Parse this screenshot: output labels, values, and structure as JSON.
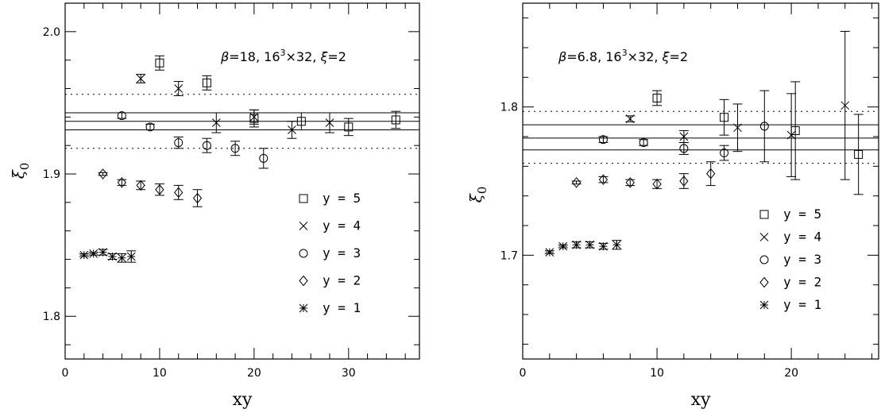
{
  "chart_data": [
    {
      "type": "scatter",
      "title": "",
      "annotation": {
        "beta": "β=18,",
        "lattice_base": "16",
        "lattice_exp": "3",
        "lattice_rest": "×32,",
        "xi_sym": "ξ",
        "xi_val": "=2"
      },
      "xlabel": "xy",
      "ylabel_main": "ξ",
      "ylabel_sub": "0",
      "xlim": [
        0,
        37.5
      ],
      "ylim": [
        1.77,
        2.02
      ],
      "xticks": [
        0,
        10,
        20,
        30
      ],
      "yticks": [
        1.8,
        1.9,
        2.0
      ],
      "xtick_labels": [
        "0",
        "10",
        "20",
        "30"
      ],
      "ytick_labels": [
        "1.8",
        "1.9",
        "2.0"
      ],
      "hlines": [
        1.931,
        1.937,
        1.943
      ],
      "dotted_hlines": [
        1.918,
        1.956
      ],
      "legend_position": "bottom-right",
      "series": [
        {
          "name": "y = 5",
          "marker": "square",
          "x": [
            10,
            15,
            20,
            25,
            30,
            35
          ],
          "y": [
            1.978,
            1.964,
            1.939,
            1.937,
            1.933,
            1.938
          ],
          "err": [
            0.005,
            0.005,
            0.006,
            0.006,
            0.006,
            0.006
          ]
        },
        {
          "name": "y = 4",
          "marker": "cross",
          "x": [
            8,
            12,
            16,
            20,
            24,
            28
          ],
          "y": [
            1.967,
            1.96,
            1.936,
            1.94,
            1.931,
            1.936
          ],
          "err": [
            0.003,
            0.005,
            0.007,
            0.005,
            0.006,
            0.007
          ]
        },
        {
          "name": "y = 3",
          "marker": "circle",
          "x": [
            6,
            9,
            12,
            15,
            18,
            21
          ],
          "y": [
            1.941,
            1.933,
            1.922,
            1.92,
            1.918,
            1.911
          ],
          "err": [
            0.002,
            0.002,
            0.004,
            0.005,
            0.005,
            0.007
          ]
        },
        {
          "name": "y = 2",
          "marker": "diamond",
          "x": [
            4,
            6,
            8,
            10,
            12,
            14
          ],
          "y": [
            1.9,
            1.894,
            1.892,
            1.889,
            1.887,
            1.883
          ],
          "err": [
            0.001,
            0.002,
            0.003,
            0.004,
            0.005,
            0.006
          ]
        },
        {
          "name": "y = 1",
          "marker": "asterisk",
          "x": [
            2,
            3,
            4,
            5,
            6,
            7
          ],
          "y": [
            1.843,
            1.844,
            1.845,
            1.842,
            1.841,
            1.842
          ],
          "err": [
            0.001,
            0.001,
            0.002,
            0.002,
            0.003,
            0.004
          ]
        }
      ]
    },
    {
      "type": "scatter",
      "title": "",
      "annotation": {
        "beta": "β=6.8,",
        "lattice_base": "16",
        "lattice_exp": "3",
        "lattice_rest": "×32,",
        "xi_sym": "ξ",
        "xi_val": "=2"
      },
      "xlabel": "xy",
      "ylabel_main": "ξ",
      "ylabel_sub": "0",
      "xlim": [
        0,
        26.5
      ],
      "ylim": [
        1.63,
        1.87
      ],
      "xticks": [
        0,
        10,
        20
      ],
      "yticks": [
        1.7,
        1.8
      ],
      "xtick_labels": [
        "0",
        "10",
        "20"
      ],
      "ytick_labels": [
        "1.7",
        "1.8"
      ],
      "hlines": [
        1.771,
        1.779,
        1.788
      ],
      "dotted_hlines": [
        1.762,
        1.797
      ],
      "legend_position": "bottom-right",
      "series": [
        {
          "name": "y = 5",
          "marker": "square",
          "x": [
            10,
            15,
            20.3,
            25
          ],
          "y": [
            1.806,
            1.793,
            1.784,
            1.768
          ],
          "err": [
            0.005,
            0.012,
            0.033,
            0.027
          ]
        },
        {
          "name": "y = 4",
          "marker": "cross",
          "x": [
            8,
            12,
            16,
            20,
            24
          ],
          "y": [
            1.792,
            1.78,
            1.786,
            1.781,
            1.801
          ],
          "err": [
            0.002,
            0.004,
            0.016,
            0.028,
            0.05
          ]
        },
        {
          "name": "y = 3",
          "marker": "circle",
          "x": [
            6,
            9,
            12,
            15,
            18
          ],
          "y": [
            1.778,
            1.776,
            1.772,
            1.769,
            1.787
          ],
          "err": [
            0.002,
            0.002,
            0.004,
            0.005,
            0.024
          ]
        },
        {
          "name": "y = 2",
          "marker": "diamond",
          "x": [
            4,
            6,
            8,
            10,
            12,
            14
          ],
          "y": [
            1.749,
            1.751,
            1.749,
            1.748,
            1.75,
            1.755
          ],
          "err": [
            0.001,
            0.002,
            0.002,
            0.003,
            0.005,
            0.008
          ]
        },
        {
          "name": "y = 1",
          "marker": "asterisk",
          "x": [
            2,
            3,
            4,
            5,
            6,
            7
          ],
          "y": [
            1.702,
            1.706,
            1.707,
            1.707,
            1.706,
            1.707
          ],
          "err": [
            0.001,
            0.001,
            0.002,
            0.002,
            0.002,
            0.003
          ]
        }
      ]
    }
  ]
}
